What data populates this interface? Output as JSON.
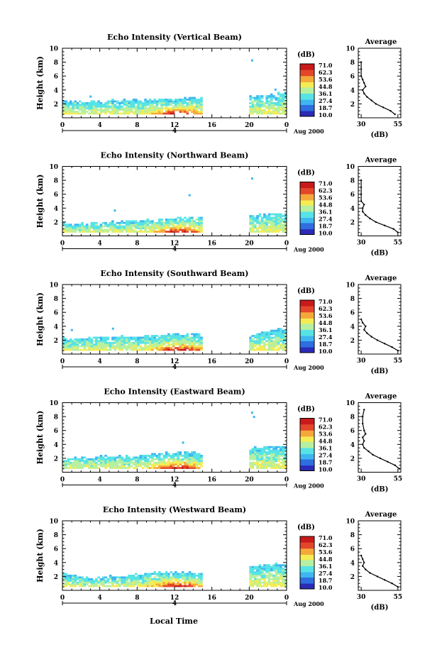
{
  "common": {
    "xlabel": "Local Time",
    "ylabel": "Height (km)",
    "date_label": "Aug 2000",
    "day_marker": "4",
    "colorbar_unit": "(dB)",
    "colorbar_ticks": [
      "71.0",
      "62.3",
      "53.6",
      "44.8",
      "36.1",
      "27.4",
      "18.7",
      "10.0"
    ],
    "avg_title": "Average",
    "avg_xlabel": "(dB)",
    "avg_xticks": [
      "30",
      "55"
    ],
    "x_ticks": [
      "0",
      "4",
      "8",
      "12",
      "16",
      "20",
      "0"
    ],
    "y_ticks": [
      "2",
      "4",
      "6",
      "8",
      "10"
    ],
    "colors": {
      "scale": [
        "#2b2bb8",
        "#2f6ee0",
        "#3fb6f0",
        "#57e3e6",
        "#b6f0a0",
        "#f5ec55",
        "#f5a83a",
        "#e4462a",
        "#c81a1a"
      ],
      "axis": "#000000",
      "background": "#ffffff"
    }
  },
  "chart_data": [
    {
      "type": "heatmap",
      "title": "Echo Intensity (Vertical Beam)",
      "xlim": [
        0,
        24
      ],
      "ylim": [
        0,
        10
      ],
      "data_gap_hours": [
        14.5,
        19.5
      ],
      "echo_top_km": [
        2.6,
        2.5,
        2.4,
        2.5,
        2.5,
        2.6,
        2.6,
        2.7,
        2.7,
        2.7,
        2.8,
        2.9,
        3.0,
        3.0,
        3.1,
        null,
        null,
        null,
        null,
        null,
        3.2,
        3.3,
        3.5,
        3.6
      ],
      "isolated_echoes": [
        {
          "x": 20.2,
          "y": 8.2
        },
        {
          "x": 2.9,
          "y": 3.0
        },
        {
          "x": 22.7,
          "y": 4.0
        }
      ],
      "avg_profile": {
        "height_km": [
          0.5,
          1,
          1.5,
          2,
          2.5,
          3,
          3.5,
          4,
          4.5,
          5,
          5.5,
          6,
          7,
          8
        ],
        "db": [
          53,
          50,
          45,
          40,
          37,
          34,
          32,
          31,
          33,
          32,
          31,
          30,
          30,
          30
        ],
        "xlim": [
          28,
          57
        ]
      }
    },
    {
      "type": "heatmap",
      "title": "Echo Intensity (Northward Beam)",
      "xlim": [
        0,
        24
      ],
      "ylim": [
        0,
        10
      ],
      "data_gap_hours": [
        14.5,
        19.5
      ],
      "echo_top_km": [
        1.9,
        1.8,
        1.9,
        2.0,
        2.1,
        2.1,
        2.2,
        2.3,
        2.4,
        2.4,
        2.5,
        2.6,
        2.7,
        2.8,
        2.9,
        null,
        null,
        null,
        null,
        null,
        3.0,
        3.1,
        3.3,
        3.4
      ],
      "isolated_echoes": [
        {
          "x": 20.2,
          "y": 8.2
        },
        {
          "x": 13.5,
          "y": 5.8
        },
        {
          "x": 5.5,
          "y": 3.6
        }
      ],
      "avg_profile": {
        "height_km": [
          0.5,
          1,
          1.5,
          2,
          2.5,
          3,
          3.5,
          4,
          4.5,
          5,
          6,
          7,
          8
        ],
        "db": [
          55,
          52,
          46,
          40,
          36,
          33,
          31,
          31,
          32,
          30,
          30,
          30,
          30
        ],
        "xlim": [
          28,
          57
        ]
      }
    },
    {
      "type": "heatmap",
      "title": "Echo Intensity (Southward Beam)",
      "xlim": [
        0,
        24
      ],
      "ylim": [
        0,
        10
      ],
      "data_gap_hours": [
        14.5,
        19.5
      ],
      "echo_top_km": [
        2.4,
        2.3,
        2.4,
        2.5,
        2.6,
        2.6,
        2.7,
        2.7,
        2.8,
        2.8,
        2.9,
        2.9,
        3.0,
        3.0,
        3.0,
        null,
        null,
        null,
        null,
        null,
        2.8,
        3.2,
        3.6,
        3.8
      ],
      "isolated_echoes": [
        {
          "x": 5.3,
          "y": 3.6
        },
        {
          "x": 0.9,
          "y": 3.4
        }
      ],
      "avg_profile": {
        "height_km": [
          0.5,
          1,
          1.5,
          2,
          2.5,
          3,
          3.5,
          4,
          4.5,
          5
        ],
        "db": [
          55,
          51,
          46,
          41,
          37,
          34,
          32,
          33,
          31,
          30
        ],
        "xlim": [
          28,
          57
        ]
      }
    },
    {
      "type": "heatmap",
      "title": "Echo Intensity (Eastward Beam)",
      "xlim": [
        0,
        24
      ],
      "ylim": [
        0,
        10
      ],
      "data_gap_hours": [
        14.5,
        19.5
      ],
      "echo_top_km": [
        2.2,
        2.2,
        2.3,
        2.3,
        2.4,
        2.4,
        2.5,
        2.5,
        2.6,
        2.6,
        2.8,
        2.9,
        3.0,
        3.0,
        2.9,
        null,
        null,
        null,
        null,
        null,
        3.6,
        3.7,
        3.8,
        3.9
      ],
      "isolated_echoes": [
        {
          "x": 20.2,
          "y": 8.5
        },
        {
          "x": 20.4,
          "y": 7.9
        },
        {
          "x": 12.8,
          "y": 4.2
        }
      ],
      "avg_profile": {
        "height_km": [
          0.5,
          1,
          1.5,
          2,
          2.5,
          3,
          3.5,
          4,
          4.5,
          5,
          5.5,
          6,
          7,
          8,
          9
        ],
        "db": [
          56,
          53,
          48,
          43,
          38,
          35,
          32,
          31,
          32,
          31,
          33,
          32,
          31,
          31,
          32
        ],
        "xlim": [
          28,
          57
        ]
      }
    },
    {
      "type": "heatmap",
      "title": "Echo Intensity (Westward Beam)",
      "xlim": [
        0,
        24
      ],
      "ylim": [
        0,
        10
      ],
      "data_gap_hours": [
        14.5,
        19.5
      ],
      "echo_top_km": [
        2.6,
        2.4,
        2.0,
        1.9,
        2.0,
        2.1,
        2.2,
        2.3,
        2.5,
        2.6,
        2.7,
        2.8,
        2.8,
        2.7,
        2.6,
        null,
        null,
        null,
        null,
        null,
        3.5,
        3.7,
        3.8,
        3.9
      ],
      "isolated_echoes": [],
      "avg_profile": {
        "height_km": [
          0.5,
          1,
          1.5,
          2,
          2.5,
          3,
          3.5,
          4,
          4.5,
          5
        ],
        "db": [
          55,
          51,
          46,
          41,
          36,
          33,
          31,
          32,
          31,
          30
        ],
        "xlim": [
          28,
          57
        ]
      }
    }
  ]
}
